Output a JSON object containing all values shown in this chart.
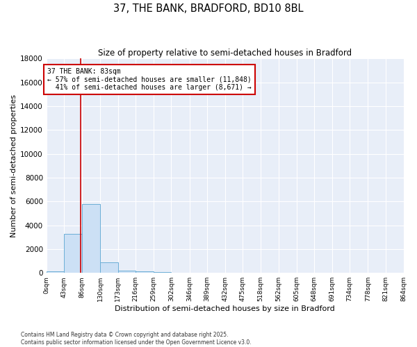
{
  "title_line1": "37, THE BANK, BRADFORD, BD10 8BL",
  "title_line2": "Size of property relative to semi-detached houses in Bradford",
  "xlabel": "Distribution of semi-detached houses by size in Bradford",
  "ylabel": "Number of semi-detached properties",
  "property_size": 83,
  "property_label": "37 THE BANK: 83sqm",
  "pct_smaller": 57,
  "pct_larger": 41,
  "n_smaller": 11848,
  "n_larger": 8671,
  "bin_edges": [
    0,
    43,
    86,
    130,
    173,
    216,
    259,
    302,
    346,
    389,
    432,
    475,
    518,
    562,
    605,
    648,
    691,
    734,
    778,
    821,
    864
  ],
  "bar_heights": [
    100,
    3300,
    5800,
    900,
    200,
    100,
    50,
    0,
    0,
    0,
    0,
    0,
    0,
    0,
    0,
    0,
    0,
    0,
    0,
    0
  ],
  "bar_color": "#cce0f5",
  "bar_edge_color": "#6baed6",
  "line_color": "#cc0000",
  "annotation_box_color": "#cc0000",
  "background_color": "#e8eef8",
  "grid_color": "#ffffff",
  "fig_background": "#ffffff",
  "ylim": [
    0,
    18000
  ],
  "yticks": [
    0,
    2000,
    4000,
    6000,
    8000,
    10000,
    12000,
    14000,
    16000,
    18000
  ],
  "footnote_line1": "Contains HM Land Registry data © Crown copyright and database right 2025.",
  "footnote_line2": "Contains public sector information licensed under the Open Government Licence v3.0."
}
